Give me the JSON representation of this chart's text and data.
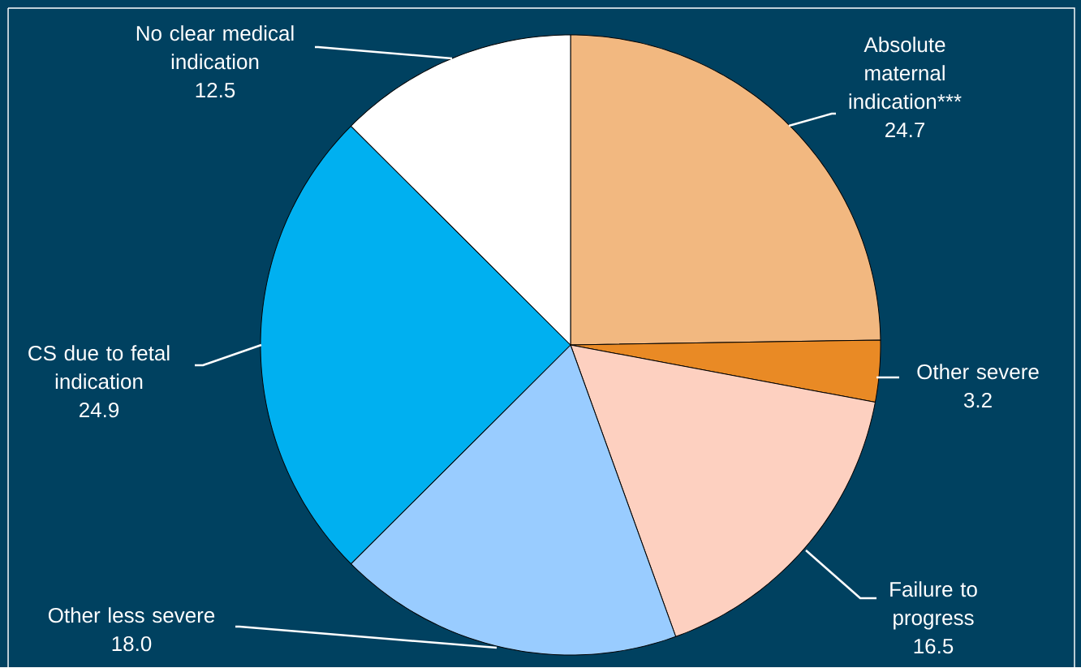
{
  "chart_data": {
    "type": "pie",
    "categories": [
      "Absolute maternal indication***",
      "Other severe",
      "Failure to progress",
      "Other less severe",
      "CS due to fetal indication",
      "No clear medical indication"
    ],
    "values": [
      24.7,
      3.2,
      16.5,
      18.0,
      24.9,
      12.5
    ],
    "colors": [
      "#f2b880",
      "#e98a25",
      "#fdd0c0",
      "#99ccff",
      "#00b0f0",
      "#ffffff"
    ],
    "value_labels": [
      "24.7",
      "3.2",
      "16.5",
      "18.0",
      "24.9",
      "12.5"
    ]
  }
}
